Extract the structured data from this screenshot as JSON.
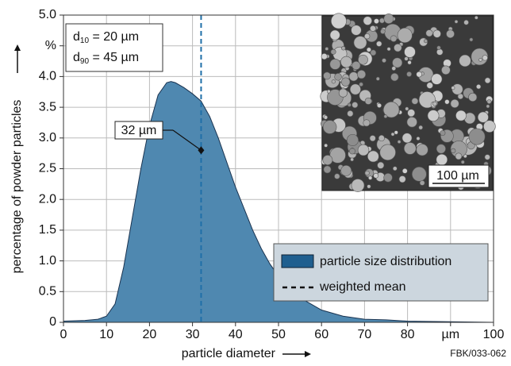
{
  "chart_data": {
    "type": "area",
    "xlabel": "particle diameter",
    "ylabel": "percentage of powder particles",
    "credit": "FBK/033-062",
    "x": [
      0,
      5,
      8,
      10,
      12,
      14,
      16,
      18,
      20,
      22,
      24,
      25,
      26,
      28,
      30,
      32,
      34,
      36,
      38,
      40,
      42,
      44,
      46,
      48,
      50,
      55,
      60,
      65,
      70,
      75,
      80,
      90,
      100
    ],
    "series": [
      {
        "name": "particle size distribution",
        "color": "#4f88b0",
        "edge_color": "#1a3350",
        "legend_color": "#1f5f8f",
        "values": [
          0.02,
          0.03,
          0.05,
          0.1,
          0.3,
          0.9,
          1.7,
          2.5,
          3.2,
          3.7,
          3.9,
          3.92,
          3.9,
          3.82,
          3.72,
          3.6,
          3.35,
          3.0,
          2.6,
          2.2,
          1.85,
          1.5,
          1.2,
          0.95,
          0.75,
          0.4,
          0.2,
          0.1,
          0.05,
          0.04,
          0.02,
          0.01,
          0
        ]
      }
    ],
    "mean_line": {
      "name": "weighted mean",
      "x": 32,
      "color": "#1f6fa8"
    },
    "annotation": {
      "text": "32 µm",
      "x": 32,
      "y": 2.8
    },
    "stats": [
      {
        "symbol": "d",
        "subscript": "10",
        "text": " = 20 µm"
      },
      {
        "symbol": "d",
        "subscript": "90",
        "text": " = 45 µm"
      }
    ],
    "inset_scale": "100 µm",
    "xlim": [
      0,
      100
    ],
    "ylim": [
      0,
      5.0
    ],
    "xticks": [
      0,
      10,
      20,
      30,
      40,
      50,
      60,
      70,
      80,
      {
        "value": 90,
        "label": "µm"
      },
      100
    ],
    "yticks": [
      0,
      0.5,
      {
        "value": 1.0,
        "label": "1.0"
      },
      1.5,
      {
        "value": 2.0,
        "label": "2.0"
      },
      2.5,
      {
        "value": 3.0,
        "label": "3.0"
      },
      3.5,
      {
        "value": 4.0,
        "label": "4.0"
      },
      {
        "value": 4.5,
        "label": "%"
      },
      {
        "value": 5.0,
        "label": "5.0"
      }
    ],
    "grid": true,
    "legend": "lower right"
  }
}
